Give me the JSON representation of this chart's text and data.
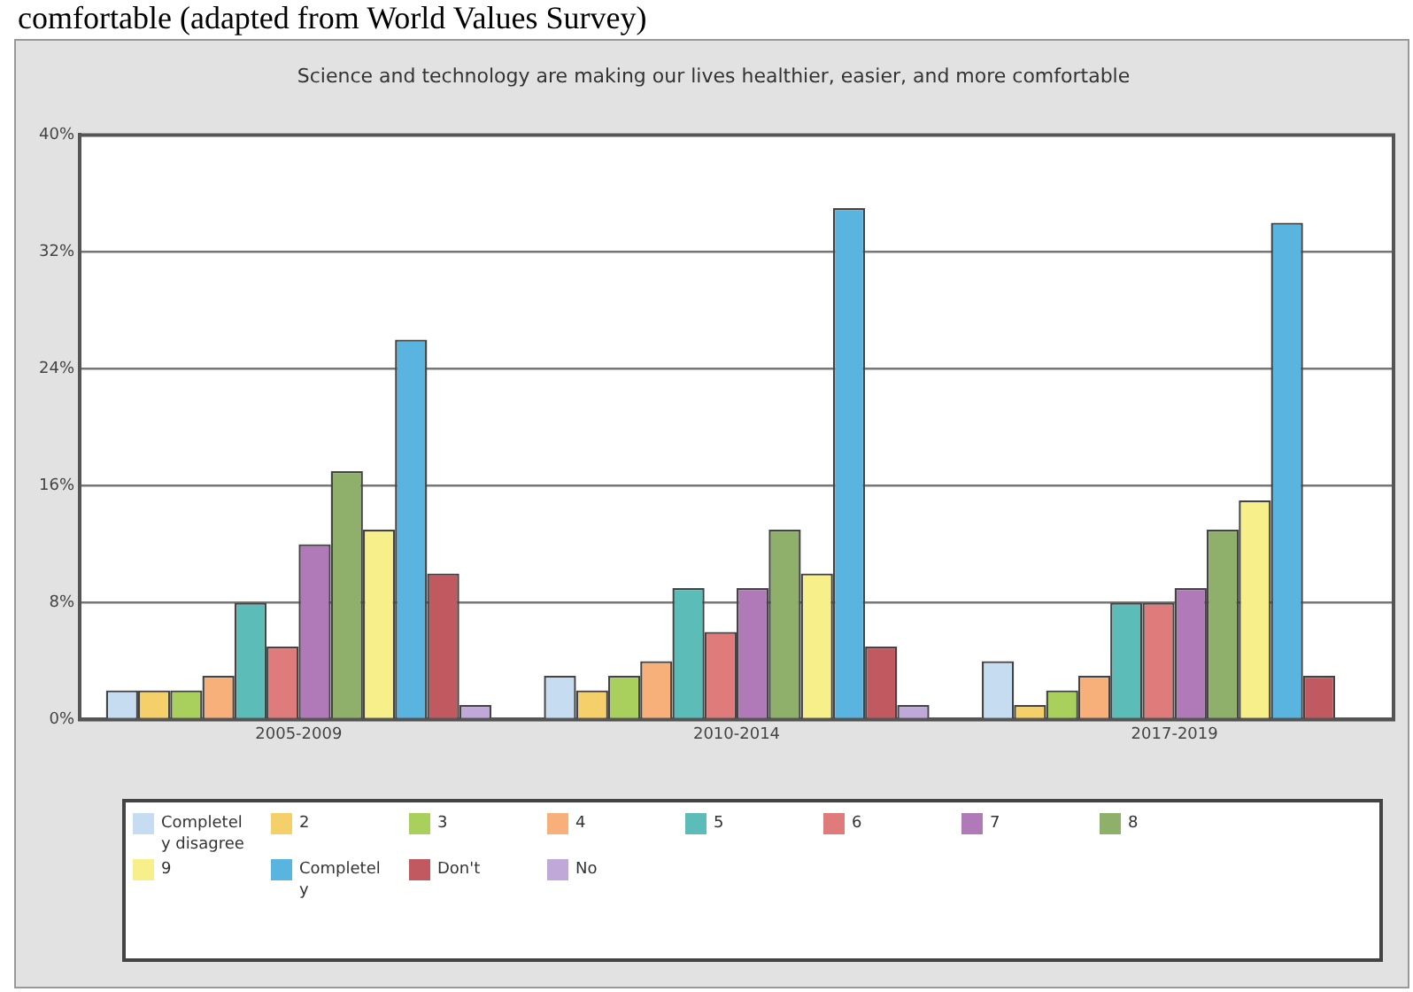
{
  "chart_data": {
    "type": "bar",
    "title": "Science and technology are making our lives healthier, easier, and more comfortable",
    "annotations": [
      "comfortable (adapted from World Values Survey)"
    ],
    "categories": [
      "2005-2009",
      "2010-2014",
      "2017-2019"
    ],
    "series": [
      {
        "name": "Completely disagree",
        "color": "#c6dcf0",
        "values": [
          2,
          3,
          4
        ]
      },
      {
        "name": "2",
        "color": "#f5cf6a",
        "values": [
          2,
          2,
          1
        ]
      },
      {
        "name": "3",
        "color": "#a9cf5c",
        "values": [
          2,
          3,
          2
        ]
      },
      {
        "name": "4",
        "color": "#f7b07a",
        "values": [
          3,
          4,
          3
        ]
      },
      {
        "name": "5",
        "color": "#5bbcb8",
        "values": [
          8,
          9,
          8
        ]
      },
      {
        "name": "6",
        "color": "#e07b7b",
        "values": [
          5,
          6,
          8
        ]
      },
      {
        "name": "7",
        "color": "#b07ab8",
        "values": [
          12,
          9,
          9
        ]
      },
      {
        "name": "8",
        "color": "#8fb06a",
        "values": [
          17,
          13,
          13
        ]
      },
      {
        "name": "9",
        "color": "#f7ef8a",
        "values": [
          13,
          10,
          15
        ]
      },
      {
        "name": "Completely",
        "color": "#5ab4e0",
        "values": [
          26,
          35,
          34
        ]
      },
      {
        "name": "Don't",
        "color": "#c05a60",
        "values": [
          10,
          5,
          3
        ]
      },
      {
        "name": "No",
        "color": "#c0a8d8",
        "values": [
          1,
          1,
          null
        ]
      }
    ],
    "ylim": [
      0,
      40
    ],
    "yticks": [
      {
        "value": 0,
        "label": "0%"
      },
      {
        "value": 8,
        "label": "8%"
      },
      {
        "value": 16,
        "label": "16%"
      },
      {
        "value": 24,
        "label": "24%"
      },
      {
        "value": 32,
        "label": "32%"
      },
      {
        "value": 40,
        "label": "40%"
      }
    ],
    "grid": "y",
    "legend": "bottom"
  }
}
